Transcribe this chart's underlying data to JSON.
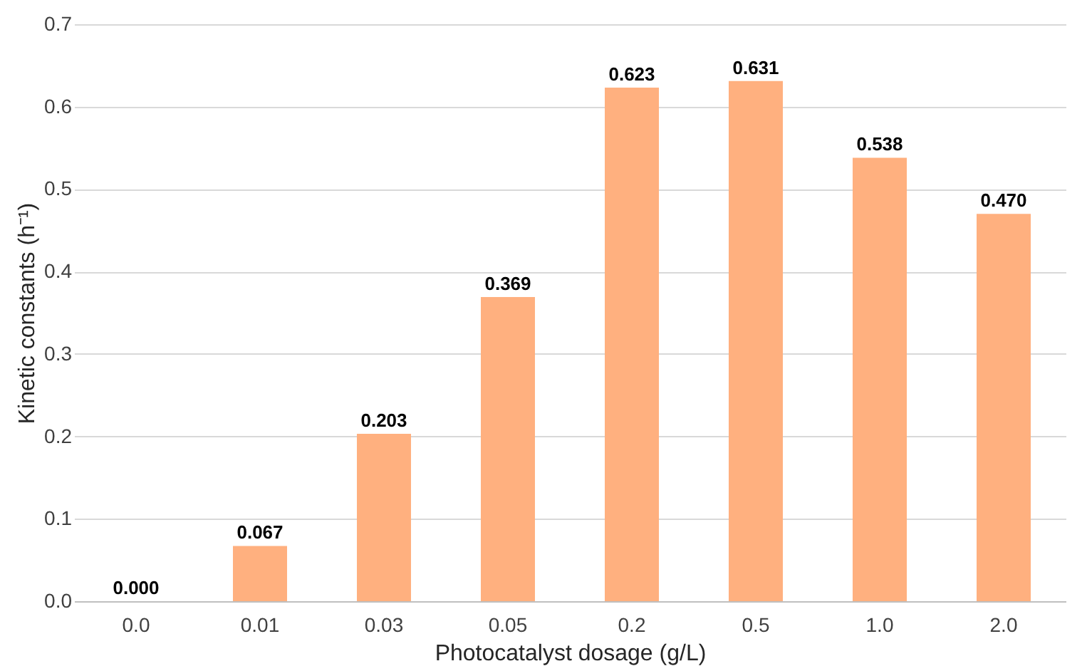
{
  "chart_data": {
    "type": "bar",
    "xlabel": "Photocatalyst dosage (g/L)",
    "ylabel": "Kinetic constants (h⁻¹)",
    "categories": [
      "0.0",
      "0.01",
      "0.03",
      "0.05",
      "0.2",
      "0.5",
      "1.0",
      "2.0"
    ],
    "values": [
      0.0,
      0.067,
      0.203,
      0.369,
      0.623,
      0.631,
      0.538,
      0.47
    ],
    "value_labels": [
      "0.000",
      "0.067",
      "0.203",
      "0.369",
      "0.623",
      "0.631",
      "0.538",
      "0.470"
    ],
    "color": "#ffb07f",
    "ylim": [
      0,
      0.7
    ],
    "yticks": [
      {
        "value": 0,
        "label": "0.0"
      },
      0.1,
      0.2,
      0.3,
      0.4,
      0.5,
      0.6,
      0.7
    ],
    "grid": "y"
  }
}
